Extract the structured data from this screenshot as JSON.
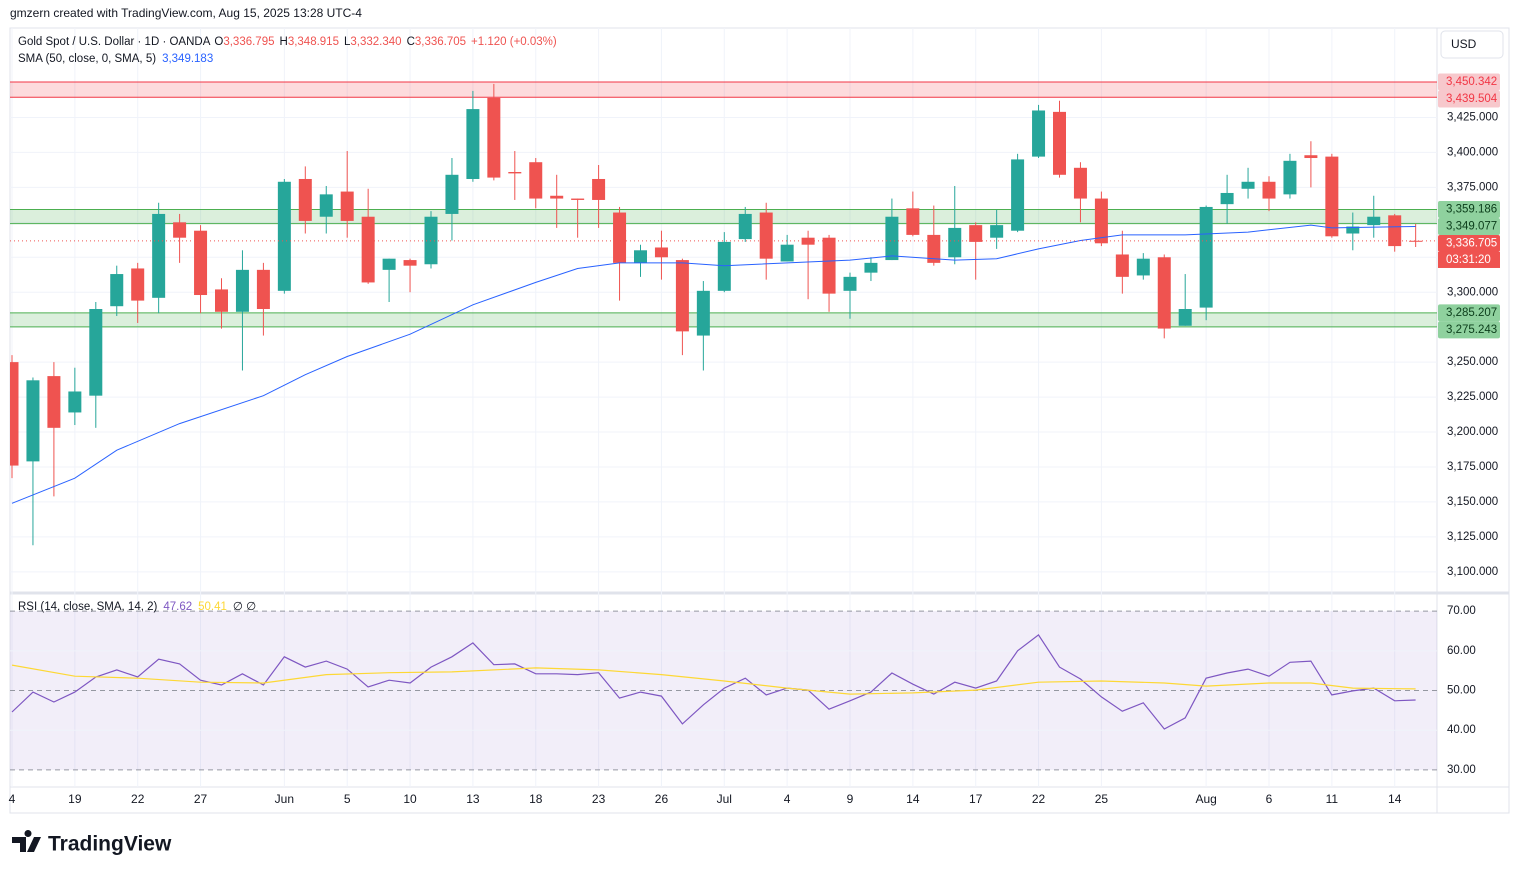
{
  "header": {
    "credit": "gmzern created with TradingView.com, Aug 15, 2025 13:28 UTC-4",
    "currency": "USD",
    "brand": "TradingView"
  },
  "chart_data": [
    {
      "type": "candlestick",
      "title": "Gold Spot / U.S. Dollar · 1D · OANDA",
      "ohlc_legend": [
        {
          "key": "O",
          "text": "3,336.795"
        },
        {
          "key": "H",
          "text": "3,348.915"
        },
        {
          "key": "L",
          "text": "3,332.340"
        },
        {
          "key": "C",
          "text": "3,336.705"
        },
        {
          "key": "",
          "text": "+1.120 (+0.03%)"
        }
      ],
      "up_color": "#26a69a",
      "down_color": "#ef5350",
      "open": [
        3250,
        3179,
        3240,
        3214,
        3226,
        3290,
        3317,
        3296,
        3350,
        3344,
        3302,
        3286,
        3316,
        3301,
        3381,
        3354,
        3372,
        3354,
        3316,
        3323,
        3320,
        3356,
        3381,
        3439,
        3386,
        3393,
        3369,
        3367,
        3381,
        3357,
        3321,
        3332,
        3323,
        3269,
        3301,
        3338,
        3357,
        3322,
        3339,
        3339,
        3301,
        3314,
        3323,
        3360,
        3341,
        3325,
        3348,
        3339,
        3344,
        3397,
        3429,
        3389,
        3367,
        3327,
        3312,
        3325,
        3276,
        3289,
        3363,
        3374,
        3379,
        3370,
        3398,
        3397,
        3342,
        3348,
        3355,
        3336.795
      ],
      "high": [
        3255,
        3239,
        3250,
        3246,
        3293,
        3319,
        3321,
        3364,
        3356,
        3348,
        3310,
        3330,
        3321,
        3381,
        3390,
        3376,
        3401,
        3374,
        3324,
        3324,
        3358,
        3396,
        3444,
        3449,
        3401,
        3396,
        3384,
        3367,
        3391,
        3361,
        3334,
        3344,
        3324,
        3308,
        3343,
        3361,
        3364,
        3341,
        3344,
        3341,
        3314,
        3325,
        3367,
        3372,
        3362,
        3376,
        3350,
        3359,
        3399,
        3434,
        3437,
        3393,
        3372,
        3344,
        3328,
        3327,
        3313,
        3362,
        3384,
        3389,
        3383,
        3399,
        3408,
        3399,
        3357,
        3369,
        3356,
        3348.915
      ],
      "low": [
        3167,
        3119,
        3154,
        3205,
        3203,
        3283,
        3278,
        3285,
        3321,
        3285,
        3274,
        3244,
        3269,
        3299,
        3342,
        3342,
        3339,
        3306,
        3293,
        3300,
        3317,
        3337,
        3379,
        3380,
        3366,
        3360,
        3346,
        3339,
        3346,
        3294,
        3311,
        3309,
        3255,
        3244,
        3300,
        3336,
        3309,
        3322,
        3295,
        3286,
        3281,
        3308,
        3323,
        3340,
        3319,
        3320,
        3309,
        3331,
        3343,
        3396,
        3382,
        3350,
        3333,
        3299,
        3309,
        3267,
        3276,
        3280,
        3349,
        3367,
        3358,
        3367,
        3375,
        3339,
        3330,
        3339,
        3329,
        3332.34
      ],
      "close": [
        3176,
        3237,
        3203,
        3229,
        3288,
        3313,
        3294,
        3356,
        3339,
        3298,
        3286,
        3316,
        3288,
        3379,
        3351,
        3370,
        3351,
        3307,
        3324,
        3319,
        3354,
        3384,
        3431,
        3382,
        3385,
        3367,
        3367,
        3366,
        3366,
        3321,
        3330,
        3325,
        3272,
        3301,
        3336,
        3356,
        3324,
        3334,
        3334,
        3299,
        3311,
        3321,
        3354,
        3341,
        3321,
        3346,
        3336,
        3348,
        3395,
        3430,
        3384,
        3367,
        3335,
        3311,
        3324,
        3274,
        3288,
        3361,
        3371,
        3379,
        3367,
        3394,
        3396,
        3340,
        3347,
        3354,
        3333,
        3336.705
      ],
      "last_price_label": "3,336.705",
      "countdown": "03:31:20",
      "sma": {
        "name": "SMA (50, close, 0, SMA, 5)",
        "value_label": "3,349.183",
        "color": "#2962ff",
        "x": [
          0,
          3,
          5,
          8,
          12,
          14,
          16,
          19,
          22,
          25,
          27,
          29,
          32,
          34,
          40,
          42,
          45,
          47,
          49,
          51,
          53,
          56,
          59,
          62,
          63,
          67
        ],
        "values": [
          3149,
          3167,
          3187,
          3206,
          3226,
          3241,
          3254,
          3270,
          3291,
          3307,
          3317,
          3321,
          3321,
          3319,
          3323,
          3326,
          3323,
          3324,
          3331,
          3337,
          3341,
          3341,
          3343,
          3348,
          3346,
          3347
        ]
      },
      "zones": [
        {
          "color": "#f23645",
          "fill": "rgba(242,54,69,0.18)",
          "high": 3450.342,
          "low": 3439.504,
          "high_label": "3,450.342",
          "low_label": "3,439.504"
        },
        {
          "color": "#4caf50",
          "fill": "rgba(76,175,80,0.2)",
          "high": 3359.186,
          "low": 3349.077,
          "high_label": "3,359.186",
          "low_label": "3,349.077"
        },
        {
          "color": "#4caf50",
          "fill": "rgba(76,175,80,0.2)",
          "high": 3285.207,
          "low": 3275.243,
          "high_label": "3,285.207",
          "low_label": "3,275.243"
        }
      ],
      "ylim": [
        3087,
        3489
      ],
      "yticks": [
        {
          "value": 3100,
          "label": "3,100.000"
        },
        {
          "value": 3125,
          "label": "3,125.000"
        },
        {
          "value": 3150,
          "label": "3,150.000"
        },
        {
          "value": 3175,
          "label": "3,175.000"
        },
        {
          "value": 3200,
          "label": "3,200.000"
        },
        {
          "value": 3225,
          "label": "3,225.000"
        },
        {
          "value": 3250,
          "label": "3,250.000"
        },
        {
          "value": 3275,
          "label": "3,275.000"
        },
        {
          "value": 3300,
          "label": "3,300.000"
        },
        {
          "value": 3325,
          "label": "3,325.000"
        },
        {
          "value": 3350,
          "label": "3,350.000"
        },
        {
          "value": 3375,
          "label": "3,375.000"
        },
        {
          "value": 3400,
          "label": "3,400.000"
        },
        {
          "value": 3425,
          "label": "3,425.000"
        }
      ],
      "xticks": [
        {
          "value": 0,
          "label": "4"
        },
        {
          "value": 3,
          "label": "19"
        },
        {
          "value": 6,
          "label": "22"
        },
        {
          "value": 9,
          "label": "27"
        },
        {
          "value": 13,
          "label": "Jun"
        },
        {
          "value": 16,
          "label": "5"
        },
        {
          "value": 19,
          "label": "10"
        },
        {
          "value": 22,
          "label": "13"
        },
        {
          "value": 25,
          "label": "18"
        },
        {
          "value": 28,
          "label": "23"
        },
        {
          "value": 31,
          "label": "26"
        },
        {
          "value": 34,
          "label": "Jul"
        },
        {
          "value": 37,
          "label": "4"
        },
        {
          "value": 40,
          "label": "9"
        },
        {
          "value": 43,
          "label": "14"
        },
        {
          "value": 46,
          "label": "17"
        },
        {
          "value": 49,
          "label": "22"
        },
        {
          "value": 52,
          "label": "25"
        },
        {
          "value": 57,
          "label": "Aug"
        },
        {
          "value": 60,
          "label": "6"
        },
        {
          "value": 63,
          "label": "11"
        },
        {
          "value": 66,
          "label": "14"
        }
      ],
      "grid": true
    },
    {
      "type": "line",
      "title": "RSI (14, close, SMA, 14, 2)",
      "flags": "∅ ∅",
      "band_color": "rgba(126,87,194,0.1)",
      "series": [
        {
          "color": "#7e57c2",
          "value_label": "47.62",
          "values": [
            44.6,
            49.6,
            47.1,
            49.6,
            53.4,
            55.2,
            53.4,
            57.9,
            56.7,
            52.6,
            51.4,
            54.2,
            51.4,
            58.5,
            55.9,
            57.4,
            55.4,
            50.9,
            52.6,
            51.9,
            55.9,
            58.5,
            62,
            56.5,
            56.7,
            54.2,
            54.2,
            54,
            54.5,
            48.1,
            49.6,
            48.6,
            41.6,
            46.4,
            50.6,
            53.1,
            48.9,
            50.6,
            50.1,
            45.3,
            47.4,
            49.6,
            54.4,
            51.6,
            49.1,
            52.1,
            50.6,
            52.4,
            60,
            64,
            55.9,
            52.9,
            48.4,
            44.8,
            46.9,
            40.3,
            43.1,
            53.1,
            54.4,
            55.4,
            53.6,
            57.1,
            57.4,
            48.9,
            49.9,
            50.6,
            47.4,
            47.62
          ]
        },
        {
          "color": "#fdd835",
          "value_label": "50.41",
          "x": [
            0,
            3,
            6,
            9,
            12,
            15,
            18,
            21,
            25,
            28,
            31,
            34,
            37,
            40,
            43,
            46,
            49,
            52,
            55,
            57,
            60,
            62,
            64,
            67
          ],
          "values": [
            56.4,
            53.6,
            53.1,
            52.1,
            51.9,
            54,
            54.5,
            54.7,
            55.7,
            55.2,
            54,
            52.4,
            50.6,
            49.1,
            49.4,
            50.1,
            52.1,
            52.4,
            51.9,
            51.1,
            51.9,
            51.9,
            50.6,
            50.41
          ]
        }
      ],
      "ylim": [
        26.2,
        72.8
      ],
      "yticks": [
        {
          "value": 30,
          "label": "30.00"
        },
        {
          "value": 40,
          "label": "40.00"
        },
        {
          "value": 50,
          "label": "50.00"
        },
        {
          "value": 60,
          "label": "60.00"
        },
        {
          "value": 70,
          "label": "70.00"
        }
      ]
    }
  ]
}
